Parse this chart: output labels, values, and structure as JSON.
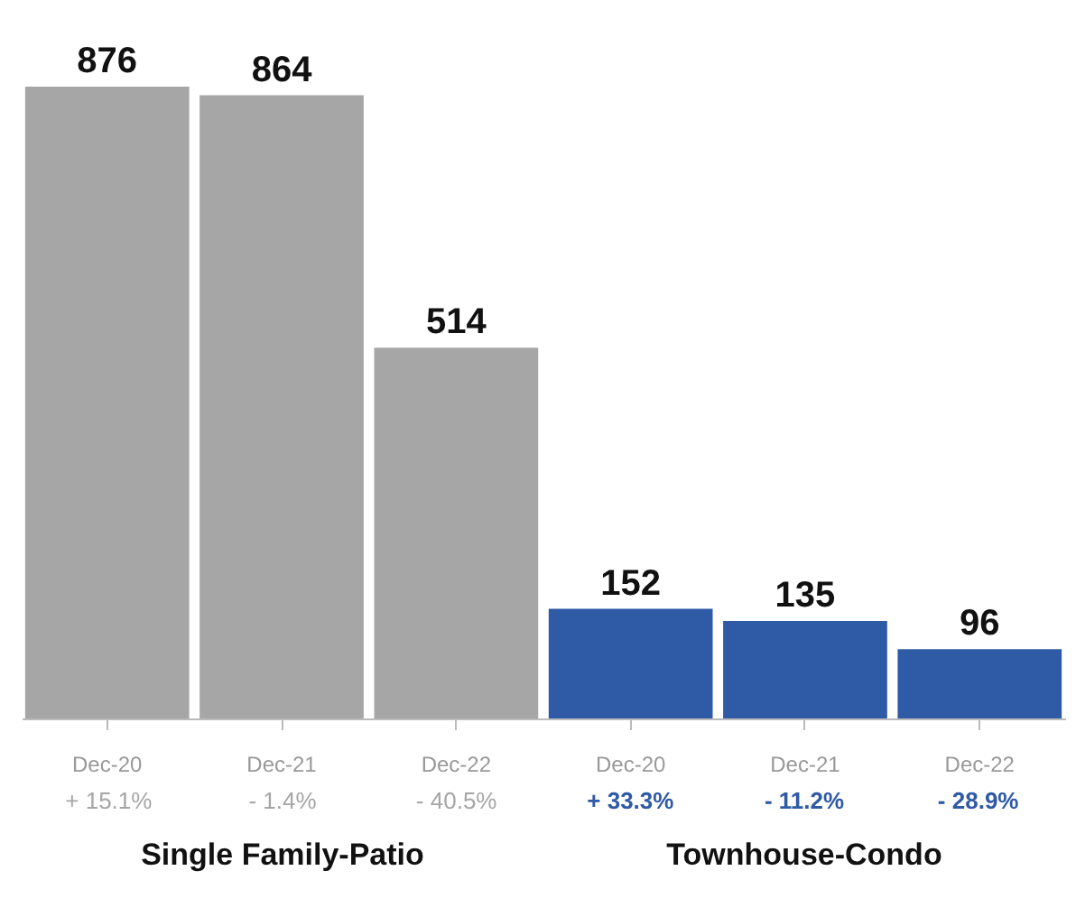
{
  "chart_data": {
    "type": "bar",
    "categories": [
      "Dec-20",
      "Dec-21",
      "Dec-22",
      "Dec-20",
      "Dec-21",
      "Dec-22"
    ],
    "values": [
      876,
      864,
      514,
      152,
      135,
      96
    ],
    "colors": [
      "#a6a6a6",
      "#a6a6a6",
      "#a6a6a6",
      "#2f5aa6",
      "#2f5aa6",
      "#2f5aa6"
    ],
    "data_labels": true,
    "grid": false,
    "annotations": [
      "+ 15.1%",
      "- 1.4%",
      "- 40.5%",
      "+ 33.3%",
      "- 11.2%",
      "- 28.9%",
      "Single Family-Patio",
      "Townhouse-Condo"
    ]
  }
}
